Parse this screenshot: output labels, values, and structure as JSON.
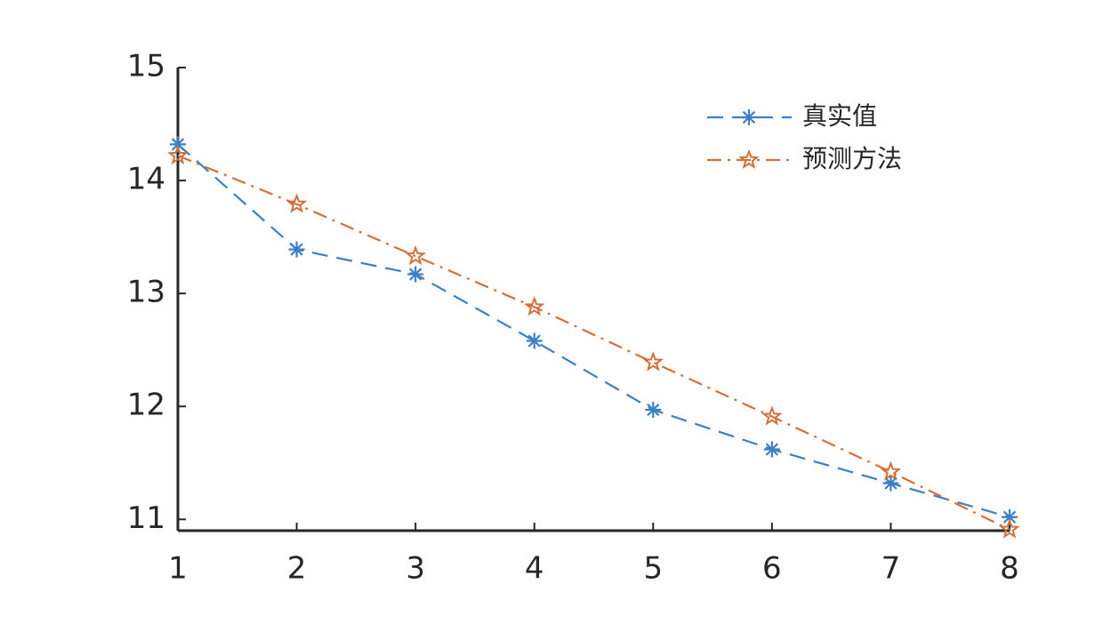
{
  "chart_data": {
    "type": "line",
    "x": [
      1,
      2,
      3,
      4,
      5,
      6,
      7,
      8
    ],
    "series": [
      {
        "name": "真实值",
        "color": "#3b7fc4",
        "marker": "asterisk",
        "dash": "dashed",
        "values": [
          14.32,
          13.39,
          13.17,
          12.58,
          11.97,
          11.62,
          11.32,
          11.02
        ]
      },
      {
        "name": "预测方法",
        "color": "#d36f3a",
        "marker": "star",
        "dash": "dashdot",
        "values": [
          14.22,
          13.79,
          13.33,
          12.88,
          12.39,
          11.91,
          11.42,
          10.91
        ]
      }
    ],
    "xlim": [
      1,
      8
    ],
    "xticks": [
      1,
      2,
      3,
      4,
      5,
      6,
      7,
      8
    ],
    "ylim": [
      10.9,
      15
    ],
    "yticks": [
      11,
      12,
      13,
      14,
      15
    ],
    "legend": "upper right",
    "grid": false
  }
}
